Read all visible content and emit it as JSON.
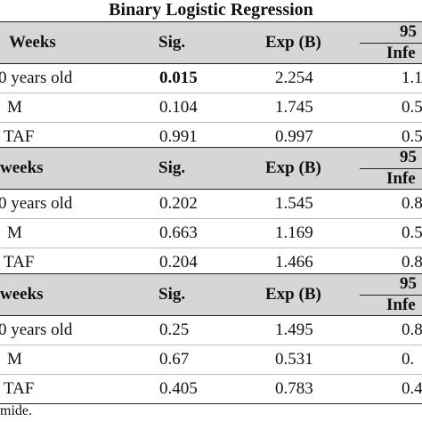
{
  "title": "Binary Logistic Regression",
  "sections": [
    {
      "group_label": "Weeks",
      "col_sig": "Sig.",
      "col_exp": "Exp (B)",
      "ci_top": "95",
      "ci_bottom": "Infe",
      "rows": [
        {
          "label": "0 years old",
          "sig": "0.015",
          "exp": "2.254",
          "ci": "1.1"
        },
        {
          "label": "M",
          "sig": "0.104",
          "exp": "1.745",
          "ci": "0.5"
        },
        {
          "label": "TAF",
          "sig": "0.991",
          "exp": "0.997",
          "ci": "0.5"
        }
      ]
    },
    {
      "group_label": "weeks",
      "col_sig": "Sig.",
      "col_exp": "Exp (B)",
      "ci_top": "95",
      "ci_bottom": "Infe",
      "rows": [
        {
          "label": "0 years old",
          "sig": "0.202",
          "exp": "1.545",
          "ci": "0.8"
        },
        {
          "label": "M",
          "sig": "0.663",
          "exp": "1.169",
          "ci": "0.5"
        },
        {
          "label": "TAF",
          "sig": "0.204",
          "exp": "1.466",
          "ci": "0.8"
        }
      ]
    },
    {
      "group_label": "weeks",
      "col_sig": "Sig.",
      "col_exp": "Exp (B)",
      "ci_top": "95",
      "ci_bottom": "Infe",
      "rows": [
        {
          "label": "0 years old",
          "sig": "0.25",
          "exp": "1.495",
          "ci": "0.8"
        },
        {
          "label": "M",
          "sig": "0.67",
          "exp": "0.531",
          "ci": "0."
        },
        {
          "label": "TAF",
          "sig": "0.405",
          "exp": "0.783",
          "ci": "0.4"
        }
      ]
    }
  ],
  "footnote": "mide."
}
